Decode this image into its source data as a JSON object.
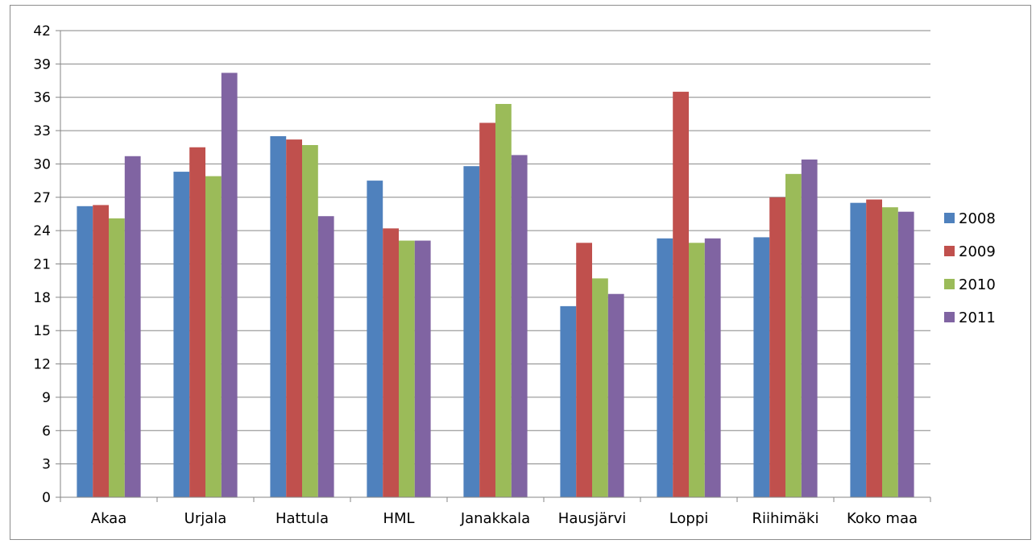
{
  "chart_data": {
    "type": "bar",
    "categories": [
      "Akaa",
      "Urjala",
      "Hattula",
      "HML",
      "Janakkala",
      "Hausjärvi",
      "Loppi",
      "Riihimäki",
      "Koko maa"
    ],
    "series": [
      {
        "name": "2008",
        "color": "#4f81bd",
        "values": [
          26.2,
          29.3,
          32.5,
          28.5,
          29.8,
          17.2,
          23.3,
          23.4,
          26.5
        ]
      },
      {
        "name": "2009",
        "color": "#c0504d",
        "values": [
          26.3,
          31.5,
          32.2,
          24.2,
          33.7,
          22.9,
          36.5,
          27.0,
          26.8
        ]
      },
      {
        "name": "2010",
        "color": "#9bbb59",
        "values": [
          25.1,
          28.9,
          31.7,
          23.1,
          35.4,
          19.7,
          22.9,
          29.1,
          26.1
        ]
      },
      {
        "name": "2011",
        "color": "#8064a2",
        "values": [
          30.7,
          38.2,
          25.3,
          23.1,
          30.8,
          18.3,
          23.3,
          30.4,
          25.7
        ]
      }
    ],
    "yticks": [
      0,
      3,
      6,
      9,
      12,
      15,
      18,
      21,
      24,
      27,
      30,
      33,
      36,
      39,
      42
    ],
    "ylim": [
      0,
      42
    ],
    "grid": true,
    "legend": "right"
  }
}
